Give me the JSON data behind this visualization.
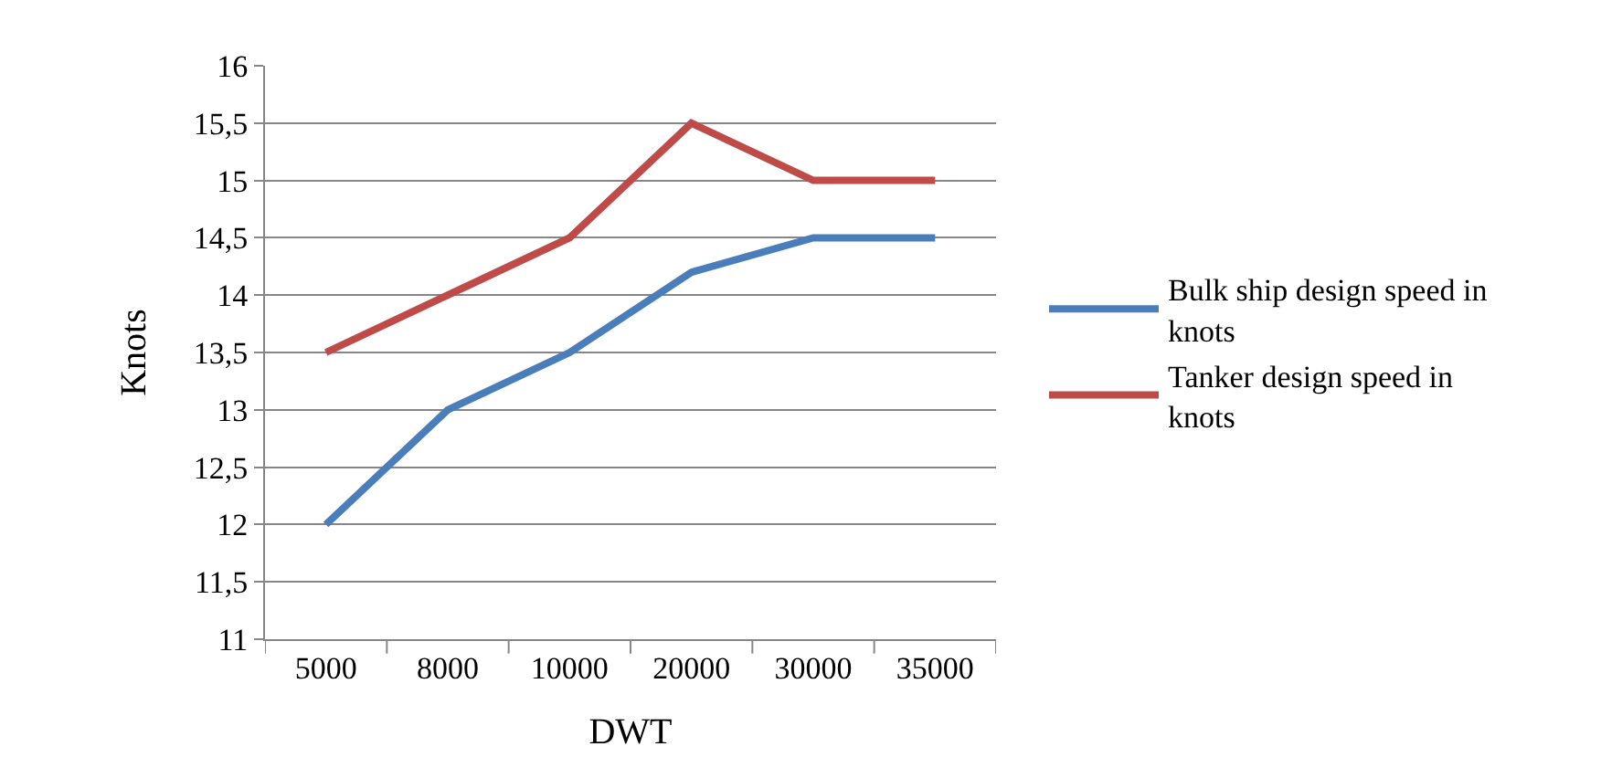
{
  "chart_data": {
    "type": "line",
    "xlabel": "DWT",
    "ylabel": "Knots",
    "categories": [
      "5000",
      "8000",
      "10000",
      "20000",
      "30000",
      "35000"
    ],
    "series": [
      {
        "name": "Bulk ship design speed in knots",
        "color": "#4a7ebb",
        "values": [
          12,
          13,
          13.5,
          14.2,
          14.5,
          14.5
        ]
      },
      {
        "name": "Tanker design speed in knots",
        "color": "#be4b48",
        "values": [
          13.5,
          14,
          14.5,
          15.5,
          15,
          15
        ]
      }
    ],
    "ylim": [
      11,
      16
    ],
    "yticks": [
      11,
      {
        "value": 11.5,
        "label": "11,5"
      },
      12,
      {
        "value": 12.5,
        "label": "12,5"
      },
      13,
      {
        "value": 13.5,
        "label": "13,5"
      },
      14,
      {
        "value": 14.5,
        "label": "14,5"
      },
      15,
      {
        "value": 15.5,
        "label": "15,5"
      },
      16
    ],
    "grid": "y",
    "legend": "right",
    "marker": "none",
    "line_style": "solid"
  }
}
